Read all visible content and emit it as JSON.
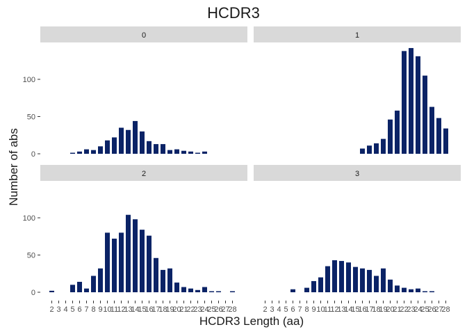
{
  "chart_data": {
    "type": "bar",
    "title": "HCDR3",
    "xlabel": "HCDR3 Length (aa)",
    "ylabel": "Number of abs",
    "x": [
      2,
      3,
      4,
      5,
      6,
      7,
      8,
      9,
      10,
      11,
      12,
      13,
      14,
      15,
      16,
      17,
      18,
      19,
      20,
      21,
      22,
      23,
      24,
      25,
      26,
      27,
      28
    ],
    "ylim": [
      0,
      150
    ],
    "yticks": [
      0,
      50,
      100
    ],
    "facet_layout": "2x2",
    "panels": [
      {
        "label": "0",
        "values": [
          0,
          0,
          0,
          1,
          3,
          6,
          5,
          10,
          18,
          22,
          35,
          32,
          44,
          30,
          17,
          13,
          13,
          5,
          6,
          4,
          3,
          1,
          3,
          0,
          0,
          0,
          0
        ]
      },
      {
        "label": "1",
        "values": [
          0,
          0,
          0,
          0,
          0,
          0,
          0,
          0,
          0,
          0,
          0,
          0,
          0,
          0,
          7,
          11,
          14,
          20,
          46,
          58,
          138,
          142,
          131,
          105,
          63,
          48,
          34
        ]
      },
      {
        "label": "2",
        "values": [
          2,
          0,
          0,
          10,
          14,
          5,
          22,
          32,
          80,
          72,
          80,
          104,
          98,
          84,
          76,
          46,
          30,
          32,
          13,
          7,
          5,
          3,
          7,
          1,
          1,
          0,
          1
        ]
      },
      {
        "label": "3",
        "values": [
          0,
          0,
          0,
          0,
          4,
          0,
          6,
          15,
          20,
          35,
          43,
          42,
          40,
          34,
          32,
          30,
          22,
          32,
          17,
          9,
          6,
          4,
          5,
          1,
          1,
          0,
          0
        ]
      }
    ]
  }
}
